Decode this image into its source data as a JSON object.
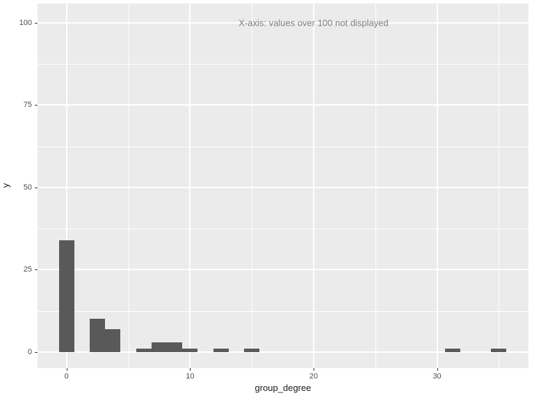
{
  "chart_data": {
    "type": "bar",
    "subtype": "histogram",
    "title": "",
    "xlabel": "group_degree",
    "ylabel": "y",
    "binwidth": 1.25,
    "bins": [
      {
        "x": 0,
        "count": 34
      },
      {
        "x": 2.5,
        "count": 10
      },
      {
        "x": 3.75,
        "count": 7
      },
      {
        "x": 6.25,
        "count": 1
      },
      {
        "x": 7.5,
        "count": 3
      },
      {
        "x": 8.75,
        "count": 3
      },
      {
        "x": 10,
        "count": 1
      },
      {
        "x": 12.5,
        "count": 1
      },
      {
        "x": 15,
        "count": 1
      },
      {
        "x": 31.25,
        "count": 1
      },
      {
        "x": 35,
        "count": 1
      }
    ],
    "xlim": [
      -2.35,
      37.4
    ],
    "ylim": [
      -4.9,
      105.9
    ],
    "x_ticks": [
      {
        "v": 0,
        "label": "0"
      },
      {
        "v": 10,
        "label": "10"
      },
      {
        "v": 20,
        "label": "20"
      },
      {
        "v": 30,
        "label": "30"
      }
    ],
    "x_minor_ticks": [
      5,
      15,
      25,
      35
    ],
    "y_ticks": [
      {
        "v": 0,
        "label": "0"
      },
      {
        "v": 25,
        "label": "25"
      },
      {
        "v": 50,
        "label": "50"
      },
      {
        "v": 75,
        "label": "75"
      },
      {
        "v": 100,
        "label": "100"
      }
    ],
    "y_minor_ticks": [
      12.5,
      37.5,
      62.5,
      87.5
    ],
    "annotation": {
      "text": "X-axis: values over 100 not displayed",
      "x": 20,
      "y": 100
    },
    "legend": "none",
    "grid": "white major and minor gridlines on gray panel (ggplot theme_gray)"
  },
  "style": {
    "panel_bg": "#EBEBEB",
    "bar_fill": "#595959",
    "gridline_color": "#FFFFFF",
    "tick_label_color": "#4D4D4D",
    "axis_title_color": "#1a1a1a",
    "annotation_color": "#7F7F7F",
    "tick_mark_color": "#333333"
  }
}
